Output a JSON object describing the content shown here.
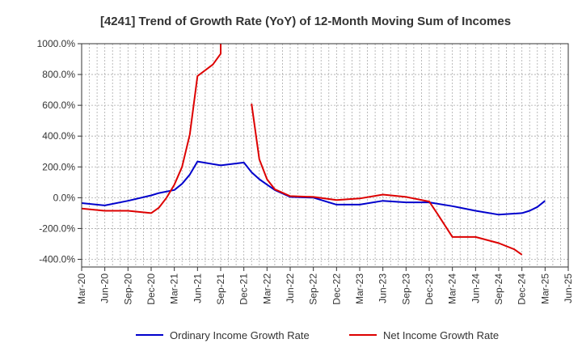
{
  "chart_data": {
    "type": "line",
    "title": "[4241]  Trend of Growth Rate (YoY) of 12-Month Moving Sum of Incomes",
    "xlabel": "",
    "ylabel": "",
    "ylim": [
      -450,
      1000
    ],
    "y_ticks": [
      1000,
      800,
      600,
      400,
      200,
      0,
      -200,
      -400
    ],
    "y_tick_labels": [
      "1000.0%",
      "800.0%",
      "600.0%",
      "400.0%",
      "200.0%",
      "0.0%",
      "-200.0%",
      "-400.0%"
    ],
    "x_start": "Mar-20",
    "x_tick_labels": [
      "Mar-20",
      "Jun-20",
      "Sep-20",
      "Dec-20",
      "Mar-21",
      "Jun-21",
      "Sep-21",
      "Dec-21",
      "Mar-22",
      "Jun-22",
      "Sep-22",
      "Dec-22",
      "Mar-23",
      "Jun-23",
      "Sep-23",
      "Dec-23",
      "Mar-24",
      "Jun-24",
      "Sep-24",
      "Dec-24",
      "Mar-25",
      "Jun-25"
    ],
    "x_tick_months": [
      "2020-03",
      "2020-06",
      "2020-09",
      "2020-12",
      "2021-03",
      "2021-06",
      "2021-09",
      "2021-12",
      "2022-03",
      "2022-06",
      "2022-09",
      "2022-12",
      "2023-03",
      "2023-06",
      "2023-09",
      "2023-12",
      "2024-03",
      "2024-06",
      "2024-09",
      "2024-12",
      "2025-03",
      "2025-06"
    ],
    "grid": true,
    "legend_position": "bottom",
    "series": [
      {
        "name": "Ordinary Income Growth Rate",
        "color": "#0000cc",
        "points": [
          [
            "2020-03",
            -35
          ],
          [
            "2020-06",
            -50
          ],
          [
            "2020-09",
            -20
          ],
          [
            "2020-12",
            15
          ],
          [
            "2021-01",
            30
          ],
          [
            "2021-03",
            50
          ],
          [
            "2021-04",
            90
          ],
          [
            "2021-05",
            150
          ],
          [
            "2021-06",
            235
          ],
          [
            "2021-09",
            210
          ],
          [
            "2021-12",
            228
          ],
          [
            "2022-01",
            165
          ],
          [
            "2022-02",
            120
          ],
          [
            "2022-03",
            85
          ],
          [
            "2022-04",
            50
          ],
          [
            "2022-06",
            5
          ],
          [
            "2022-09",
            0
          ],
          [
            "2022-12",
            -45
          ],
          [
            "2023-03",
            -45
          ],
          [
            "2023-06",
            -20
          ],
          [
            "2023-09",
            -30
          ],
          [
            "2023-12",
            -30
          ],
          [
            "2024-03",
            -55
          ],
          [
            "2024-06",
            -85
          ],
          [
            "2024-09",
            -110
          ],
          [
            "2024-12",
            -100
          ],
          [
            "2025-01",
            -85
          ],
          [
            "2025-02",
            -60
          ],
          [
            "2025-03",
            -20
          ]
        ]
      },
      {
        "name": "Net Income Growth Rate",
        "color": "#dd0000",
        "segments": [
          [
            [
              "2020-03",
              -70
            ],
            [
              "2020-06",
              -85
            ],
            [
              "2020-09",
              -85
            ],
            [
              "2020-12",
              -100
            ],
            [
              "2021-01",
              -65
            ],
            [
              "2021-02",
              0
            ],
            [
              "2021-03",
              85
            ],
            [
              "2021-04",
              200
            ],
            [
              "2021-05",
              410
            ],
            [
              "2021-06",
              790
            ],
            [
              "2021-08",
              865
            ],
            [
              "2021-09",
              935
            ],
            [
              "2021-09",
              1000
            ]
          ],
          [
            [
              "2022-01",
              610
            ],
            [
              "2022-02",
              250
            ],
            [
              "2022-03",
              120
            ],
            [
              "2022-04",
              55
            ],
            [
              "2022-06",
              10
            ],
            [
              "2022-09",
              5
            ],
            [
              "2022-12",
              -15
            ],
            [
              "2023-03",
              -5
            ],
            [
              "2023-06",
              20
            ],
            [
              "2023-09",
              5
            ],
            [
              "2023-12",
              -25
            ],
            [
              "2024-01",
              -100
            ],
            [
              "2024-03",
              -255
            ],
            [
              "2024-06",
              -255
            ],
            [
              "2024-09",
              -295
            ],
            [
              "2024-11",
              -335
            ],
            [
              "2024-12",
              -370
            ]
          ]
        ]
      }
    ]
  }
}
